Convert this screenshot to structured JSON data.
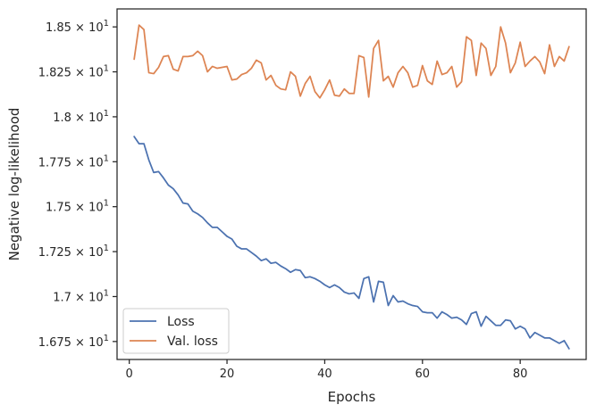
{
  "chart_data": {
    "type": "line",
    "title": "",
    "xlabel": "Epochs",
    "ylabel": "Negative log-likelihood",
    "xlim": [
      -2.5,
      93.5
    ],
    "ylim": [
      16.65,
      18.6
    ],
    "x_ticks": [
      {
        "value": 0,
        "label": "0"
      },
      {
        "value": 20,
        "label": "20"
      },
      {
        "value": 40,
        "label": "40"
      },
      {
        "value": 60,
        "label": "60"
      },
      {
        "value": 80,
        "label": "80"
      }
    ],
    "y_ticks": [
      {
        "value": 16.75,
        "mantissa": "1.675",
        "label": "1.675 × 10^1"
      },
      {
        "value": 17.0,
        "mantissa": "1.7",
        "label": "1.7 × 10^1"
      },
      {
        "value": 17.25,
        "mantissa": "1.725",
        "label": "1.725 × 10^1"
      },
      {
        "value": 17.5,
        "mantissa": "1.75",
        "label": "1.75 × 10^1"
      },
      {
        "value": 17.75,
        "mantissa": "1.775",
        "label": "1.775 × 10^1"
      },
      {
        "value": 18.0,
        "mantissa": "1.8",
        "label": "1.8 × 10^1"
      },
      {
        "value": 18.25,
        "mantissa": "1.825",
        "label": "1.825 × 10^1"
      },
      {
        "value": 18.5,
        "mantissa": "1.85",
        "label": "1.85 × 10^1"
      }
    ],
    "tick_base": "10",
    "tick_exponent": "1",
    "grid": false,
    "legend_position": "bottom-left",
    "x": [
      1,
      2,
      3,
      4,
      5,
      6,
      7,
      8,
      9,
      10,
      11,
      12,
      13,
      14,
      15,
      16,
      17,
      18,
      19,
      20,
      21,
      22,
      23,
      24,
      25,
      26,
      27,
      28,
      29,
      30,
      31,
      32,
      33,
      34,
      35,
      36,
      37,
      38,
      39,
      40,
      41,
      42,
      43,
      44,
      45,
      46,
      47,
      48,
      49,
      50,
      51,
      52,
      53,
      54,
      55,
      56,
      57,
      58,
      59,
      60,
      61,
      62,
      63,
      64,
      65,
      66,
      67,
      68,
      69,
      70,
      71,
      72,
      73,
      74,
      75,
      76,
      77,
      78,
      79,
      80,
      81,
      82,
      83,
      84,
      85,
      86,
      87,
      88,
      89,
      90
    ],
    "series": [
      {
        "name": "Loss",
        "color": "#4c72b0",
        "values": [
          17.89,
          17.85,
          17.85,
          17.76,
          17.69,
          17.695,
          17.66,
          17.62,
          17.6,
          17.565,
          17.52,
          17.515,
          17.475,
          17.46,
          17.44,
          17.41,
          17.385,
          17.385,
          17.36,
          17.335,
          17.32,
          17.28,
          17.265,
          17.265,
          17.245,
          17.225,
          17.2,
          17.21,
          17.185,
          17.19,
          17.17,
          17.155,
          17.135,
          17.15,
          17.145,
          17.105,
          17.11,
          17.1,
          17.085,
          17.065,
          17.05,
          17.065,
          17.05,
          17.025,
          17.015,
          17.02,
          16.99,
          17.1,
          17.11,
          16.97,
          17.085,
          17.08,
          16.95,
          17.005,
          16.97,
          16.975,
          16.96,
          16.95,
          16.945,
          16.915,
          16.91,
          16.91,
          16.88,
          16.915,
          16.9,
          16.88,
          16.885,
          16.87,
          16.845,
          16.905,
          16.915,
          16.835,
          16.89,
          16.865,
          16.84,
          16.84,
          16.87,
          16.865,
          16.82,
          16.835,
          16.82,
          16.77,
          16.8,
          16.785,
          16.77,
          16.77,
          16.755,
          16.74,
          16.755,
          16.71
        ]
      },
      {
        "name": "Val. loss",
        "color": "#dd8452",
        "values": [
          18.32,
          18.51,
          18.485,
          18.245,
          18.24,
          18.275,
          18.335,
          18.34,
          18.265,
          18.255,
          18.335,
          18.335,
          18.34,
          18.365,
          18.34,
          18.25,
          18.28,
          18.27,
          18.275,
          18.28,
          18.205,
          18.21,
          18.235,
          18.245,
          18.27,
          18.315,
          18.3,
          18.205,
          18.23,
          18.175,
          18.155,
          18.15,
          18.25,
          18.225,
          18.115,
          18.185,
          18.225,
          18.14,
          18.105,
          18.15,
          18.205,
          18.12,
          18.115,
          18.155,
          18.13,
          18.13,
          18.34,
          18.33,
          18.11,
          18.38,
          18.425,
          18.2,
          18.225,
          18.165,
          18.245,
          18.28,
          18.245,
          18.165,
          18.175,
          18.285,
          18.2,
          18.18,
          18.31,
          18.235,
          18.245,
          18.28,
          18.165,
          18.195,
          18.445,
          18.425,
          18.23,
          18.41,
          18.38,
          18.23,
          18.28,
          18.5,
          18.41,
          18.245,
          18.3,
          18.415,
          18.28,
          18.31,
          18.335,
          18.305,
          18.24,
          18.4,
          18.28,
          18.335,
          18.31,
          18.39
        ]
      }
    ]
  }
}
